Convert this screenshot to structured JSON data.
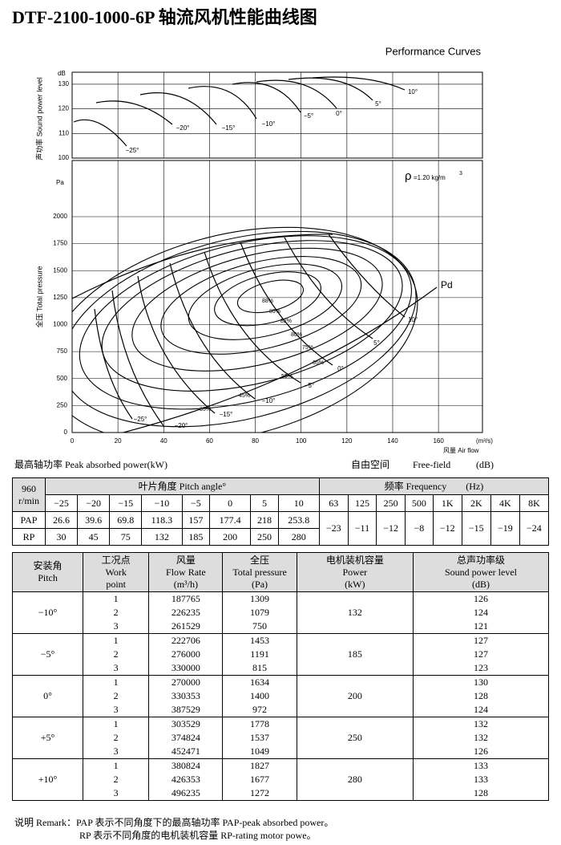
{
  "header": {
    "title": "DTF-2100-1000-6P 轴流风机性能曲线图",
    "subtitle": "Performance Curves"
  },
  "chart": {
    "sound_axis": {
      "unit": "dB",
      "label": "声功率 Sound power level",
      "ticks": [
        100,
        110,
        120,
        130
      ]
    },
    "pressure_axis": {
      "unit": "Pa",
      "label": "全压 Total pressure",
      "ticks": [
        0,
        250,
        500,
        750,
        1000,
        1250,
        1500,
        1750,
        2000
      ]
    },
    "flow_axis": {
      "unit": "(m³/s)",
      "label": "风量 Air flow",
      "ticks": [
        0,
        20,
        40,
        60,
        80,
        100,
        120,
        140,
        160
      ]
    },
    "density": {
      "symbol": "ρ",
      "value": "=1.20 kg/m",
      "exponent": "3"
    },
    "sound_curve_labels": [
      "−25°",
      "−20°",
      "−15°",
      "−10°",
      "−5°",
      "0°",
      "5°",
      "10°"
    ],
    "pressure_curve_labels": [
      "−25°",
      "−20°",
      "−15°",
      "−10°",
      "−5°",
      "0°",
      "5°",
      "10°"
    ],
    "efficiency_labels": [
      "88%",
      "85%",
      "82%",
      "80%",
      "75%",
      "65%",
      "55%",
      "45%",
      "35%"
    ],
    "pd_label": "Pd"
  },
  "captions": {
    "peak_power": "最高轴功率 Peak absorbed power(kW)",
    "free_field": [
      "自由空间",
      "Free-field",
      "(dB)"
    ]
  },
  "table1": {
    "speed": [
      "960",
      "r/min"
    ],
    "pitch_header": "叶片角度 Pitch angle°",
    "freq_header": [
      "频率 Frequency",
      "(Hz)"
    ],
    "angles": [
      "−25",
      "−20",
      "−15",
      "−10",
      "−5",
      "0",
      "5",
      "10"
    ],
    "freqs": [
      "63",
      "125",
      "250",
      "500",
      "1K",
      "2K",
      "4K",
      "8K"
    ],
    "rows": [
      {
        "label": "PAP",
        "values": [
          26.6,
          39.6,
          69.8,
          118.3,
          157,
          177.4,
          218,
          253.8
        ]
      },
      {
        "label": "RP",
        "values": [
          30,
          45,
          75,
          132,
          185,
          200,
          250,
          280
        ]
      }
    ],
    "sound_corrections": [
      "−23",
      "−11",
      "−12",
      "−8",
      "−12",
      "−15",
      "−19",
      "−24"
    ]
  },
  "table2": {
    "headers": [
      [
        "安装角",
        "Pitch"
      ],
      [
        "工况点",
        "Work",
        "point"
      ],
      [
        "风量",
        "Flow Rate",
        "(m³/h)"
      ],
      [
        "全压",
        "Total pressure",
        "(Pa)"
      ],
      [
        "电机装机容量",
        "Power",
        "(kW)"
      ],
      [
        "总声功率级",
        "Sound power level",
        "(dB)"
      ]
    ],
    "groups": [
      {
        "pitch": "−10°",
        "power": 132,
        "points": [
          {
            "point": 1,
            "flow": 187765,
            "pressure": 1309,
            "sound": 126
          },
          {
            "point": 2,
            "flow": 226235,
            "pressure": 1079,
            "sound": 124
          },
          {
            "point": 3,
            "flow": 261529,
            "pressure": 750,
            "sound": 121
          }
        ]
      },
      {
        "pitch": "−5°",
        "power": 185,
        "points": [
          {
            "point": 1,
            "flow": 222706,
            "pressure": 1453,
            "sound": 127
          },
          {
            "point": 2,
            "flow": 276000,
            "pressure": 1191,
            "sound": 127
          },
          {
            "point": 3,
            "flow": 330000,
            "pressure": 815,
            "sound": 123
          }
        ]
      },
      {
        "pitch": "0°",
        "power": 200,
        "points": [
          {
            "point": 1,
            "flow": 270000,
            "pressure": 1634,
            "sound": 130
          },
          {
            "point": 2,
            "flow": 330353,
            "pressure": 1400,
            "sound": 128
          },
          {
            "point": 3,
            "flow": 387529,
            "pressure": 972,
            "sound": 124
          }
        ]
      },
      {
        "pitch": "+5°",
        "power": 250,
        "points": [
          {
            "point": 1,
            "flow": 303529,
            "pressure": 1778,
            "sound": 132
          },
          {
            "point": 2,
            "flow": 374824,
            "pressure": 1537,
            "sound": 132
          },
          {
            "point": 3,
            "flow": 452471,
            "pressure": 1049,
            "sound": 126
          }
        ]
      },
      {
        "pitch": "+10°",
        "power": 280,
        "points": [
          {
            "point": 1,
            "flow": 380824,
            "pressure": 1827,
            "sound": 133
          },
          {
            "point": 2,
            "flow": 426353,
            "pressure": 1677,
            "sound": 133
          },
          {
            "point": 3,
            "flow": 496235,
            "pressure": 1272,
            "sound": 128
          }
        ]
      }
    ]
  },
  "remark": [
    "说明 Remark：PAP 表示不同角度下的最高轴功率 PAP-peak absorbed power。",
    "RP 表示不同角度的电机装机容量 RP-rating motor powe。"
  ]
}
